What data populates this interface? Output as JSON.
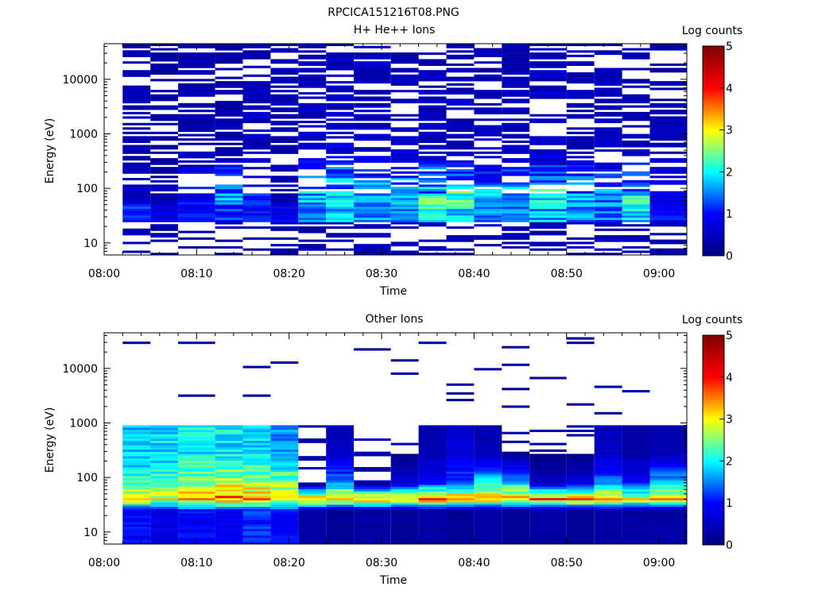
{
  "figure_title": "RPCICA151216T08.PNG",
  "colors": {
    "colormap": [
      "#000080",
      "#0000ff",
      "#00ffff",
      "#ffff00",
      "#ff0000",
      "#800000"
    ],
    "axes": "#000000",
    "background": "#ffffff"
  },
  "chart_data": [
    {
      "type": "heatmap",
      "title": "H+ He++ Ions",
      "xlabel": "Time",
      "ylabel": "Energy (eV)",
      "colorbar_label": "Log counts",
      "xlim": [
        "08:00",
        "09:03"
      ],
      "x_ticks": [
        "08:00",
        "08:10",
        "08:20",
        "08:30",
        "08:40",
        "08:50",
        "09:00"
      ],
      "ylim": [
        6,
        45000
      ],
      "y_scale": "log",
      "y_ticks": [
        "10",
        "100",
        "1000",
        "10000"
      ],
      "clim": [
        0,
        5
      ],
      "colorbar_ticks": [
        "0",
        "1",
        "2",
        "3",
        "4",
        "5"
      ],
      "time_bins_start": [
        "08:02",
        "08:05",
        "08:08",
        "08:12",
        "08:15",
        "08:18",
        "08:21",
        "08:24",
        "08:27",
        "08:31",
        "08:34",
        "08:37",
        "08:40",
        "08:43",
        "08:46",
        "08:50",
        "08:53",
        "08:56",
        "08:59"
      ],
      "summary": "Sparse low counts (~0.2-0.9 log) across 100 eV - 40 keV in all intervals; enhanced band of 1.5-2.5 log counts near 30-60 eV from 08:21 to 08:58; patchy low counts below 20 eV.",
      "profiles": [
        {
          "energy": 45,
          "log_counts": [
            1.2,
            0.8,
            1.1,
            1.3,
            1.0,
            0.9,
            1.6,
            1.8,
            1.6,
            1.7,
            2.2,
            2.0,
            1.7,
            1.6,
            1.8,
            1.6,
            1.5,
            1.9,
            1.0
          ]
        },
        {
          "energy": 60,
          "log_counts": [
            0.5,
            0.4,
            1.0,
            1.8,
            1.2,
            0.4,
            1.9,
            2.1,
            1.9,
            2.0,
            2.4,
            2.3,
            2.0,
            1.8,
            2.1,
            1.9,
            1.6,
            2.3,
            0.8
          ]
        },
        {
          "energy": 500,
          "log_counts": [
            0.4,
            0.3,
            0.4,
            0.4,
            0.5,
            0.5,
            0.5,
            0.7,
            0.6,
            0.5,
            0.5,
            0.4,
            0.6,
            0.5,
            0.5,
            0.4,
            0.5,
            0.4,
            0.5
          ]
        },
        {
          "energy": 10000,
          "log_counts": [
            0.4,
            0.3,
            0.4,
            0.3,
            0.4,
            0.4,
            0.5,
            0.5,
            0.5,
            0.4,
            0.5,
            0.5,
            0.4,
            0.4,
            0.5,
            0.4,
            0.4,
            0.4,
            0.4
          ]
        }
      ]
    },
    {
      "type": "heatmap",
      "title": "Other Ions",
      "xlabel": "Time",
      "ylabel": "Energy (eV)",
      "colorbar_label": "Log counts",
      "xlim": [
        "08:00",
        "09:03"
      ],
      "x_ticks": [
        "08:00",
        "08:10",
        "08:20",
        "08:30",
        "08:40",
        "08:50",
        "09:00"
      ],
      "ylim": [
        6,
        45000
      ],
      "y_scale": "log",
      "y_ticks": [
        "10",
        "100",
        "1000",
        "10000"
      ],
      "clim": [
        0,
        5
      ],
      "colorbar_ticks": [
        "0",
        "1",
        "2",
        "3",
        "4",
        "5"
      ],
      "time_bins_start": [
        "08:02",
        "08:05",
        "08:08",
        "08:12",
        "08:15",
        "08:18",
        "08:21",
        "08:24",
        "08:27",
        "08:31",
        "08:34",
        "08:37",
        "08:40",
        "08:43",
        "08:46",
        "08:50",
        "08:53",
        "08:56",
        "08:59"
      ],
      "summary": "Strong band peaking near 35-45 eV (up to ~3.8 log counts) throughout the interval; broad 1.5-2.5 log population from 40 to 700 eV between 08:02 and 08:21; isolated weak counts up to ~30 keV.",
      "profiles": [
        {
          "energy": 25,
          "log_counts": [
            1.0,
            0.8,
            1.0,
            0.9,
            1.2,
            1.0,
            0.3,
            0.2,
            0.3,
            0.2,
            0.3,
            0.2,
            0.3,
            0.2,
            0.3,
            0.2,
            0.3,
            0.3,
            0.3
          ]
        },
        {
          "energy": 40,
          "log_counts": [
            3.0,
            3.1,
            3.5,
            3.8,
            3.4,
            3.2,
            3.6,
            3.7,
            3.5,
            3.5,
            3.7,
            3.6,
            3.4,
            3.5,
            3.6,
            3.7,
            3.5,
            3.0,
            3.2
          ]
        },
        {
          "energy": 80,
          "log_counts": [
            2.2,
            2.4,
            2.6,
            2.8,
            2.7,
            2.5,
            0.0,
            1.5,
            0.0,
            0.7,
            1.0,
            1.3,
            2.0,
            1.8,
            0.5,
            0.7,
            1.5,
            1.0,
            1.8
          ]
        },
        {
          "energy": 300,
          "log_counts": [
            1.8,
            1.9,
            2.0,
            2.0,
            1.9,
            1.6,
            0.0,
            0.5,
            0.0,
            0.0,
            0.4,
            0.7,
            0.4,
            0.0,
            0.0,
            0.0,
            0.5,
            0.3,
            0.4
          ]
        }
      ]
    }
  ]
}
